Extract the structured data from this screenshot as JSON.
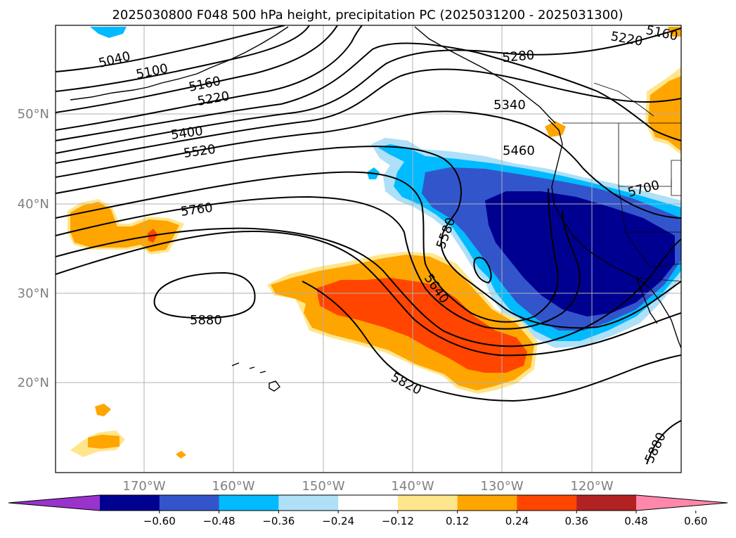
{
  "title": "2025030800 F048 500 hPa height, precipitation PC (2025031200 - 2025031300)",
  "lat_labels": [
    "50°N",
    "40°N",
    "30°N",
    "20°N"
  ],
  "lon_labels": [
    "170°W",
    "160°W",
    "150°W",
    "140°W",
    "130°W",
    "120°W"
  ],
  "contour_labels": [
    "5040",
    "5100",
    "5160",
    "5220",
    "5400",
    "5520",
    "5760",
    "5880",
    "5820",
    "5640",
    "5580",
    "5460",
    "5340",
    "5280",
    "5220",
    "5160",
    "5700",
    "5880"
  ],
  "colorbar": {
    "tick_labels": [
      "−0.60",
      "−0.48",
      "−0.36",
      "−0.24",
      "−0.12",
      "0.12",
      "0.24",
      "0.36",
      "0.48",
      "0.60"
    ],
    "colors": [
      "#9933cc",
      "#000090",
      "#3355cc",
      "#00bbff",
      "#aee0f8",
      "#ffffff",
      "#ffe68c",
      "#ffa500",
      "#ff4500",
      "#b22222",
      "#ff88aa"
    ]
  }
}
